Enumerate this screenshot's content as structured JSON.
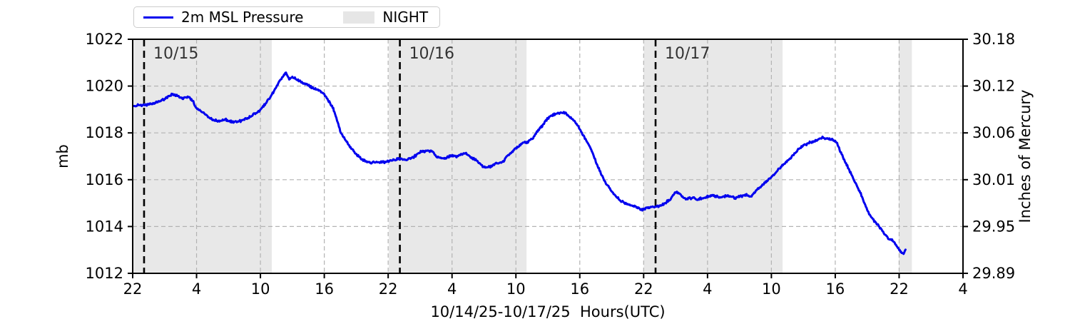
{
  "figure": {
    "xlabel": "10/14/25-10/17/25  Hours(UTC)",
    "ylabel_left": "mb",
    "ylabel_right": "Inches of Mercury"
  },
  "legend": {
    "pressure_label": "2m MSL Pressure",
    "night_label": "NIGHT"
  },
  "colors": {
    "line": "#0000ee",
    "night_fill": "#e8e8e8",
    "grid": "#b3b3b3",
    "spine": "#000000",
    "date_label": "#333333",
    "midnight_line": "#000000"
  },
  "chart_data": {
    "type": "line",
    "title": "",
    "xlabel": "10/14/25-10/17/25  Hours(UTC)",
    "ylabel_left": "mb",
    "ylabel_right": "Inches of Mercury",
    "x_axis_note": "hours UTC, t=0 corresponds to 22:00 UTC 10/14/25",
    "xlim_hours": [
      0,
      78
    ],
    "ylim_mb": [
      1012,
      1022
    ],
    "grid": true,
    "legend_position": "top-left above axes",
    "x_tick_hours": [
      0,
      6,
      12,
      18,
      24,
      30,
      36,
      42,
      48,
      54,
      60,
      66,
      72,
      78
    ],
    "x_tick_labels": [
      "22",
      "4",
      "10",
      "16",
      "22",
      "4",
      "10",
      "16",
      "22",
      "4",
      "10",
      "16",
      "22",
      "4"
    ],
    "y_left_ticks_mb": [
      1012,
      1014,
      1016,
      1018,
      1020,
      1022
    ],
    "y_right_tick_labels": [
      "29.89",
      "29.95",
      "30.01",
      "30.06",
      "30.12",
      "30.18"
    ],
    "night_bands_hours": [
      [
        0,
        13.07
      ],
      [
        24.06,
        37.0
      ],
      [
        48.0,
        61.05
      ],
      [
        71.96,
        73.2
      ]
    ],
    "midnight_lines": [
      {
        "hour": 1.07,
        "label": "10/15"
      },
      {
        "hour": 25.1,
        "label": "10/16"
      },
      {
        "hour": 49.12,
        "label": "10/17"
      }
    ],
    "series": [
      {
        "name": "2m MSL Pressure",
        "color": "#0000ee",
        "units": "mb",
        "points": [
          [
            0,
            1019.15
          ],
          [
            0.7,
            1019.18
          ],
          [
            1.3,
            1019.2
          ],
          [
            2.2,
            1019.3
          ],
          [
            3,
            1019.45
          ],
          [
            3.7,
            1019.65
          ],
          [
            4.2,
            1019.6
          ],
          [
            4.7,
            1019.45
          ],
          [
            5.2,
            1019.55
          ],
          [
            5.6,
            1019.4
          ],
          [
            6,
            1019.05
          ],
          [
            6.7,
            1018.85
          ],
          [
            7.4,
            1018.6
          ],
          [
            8,
            1018.5
          ],
          [
            8.7,
            1018.58
          ],
          [
            9.4,
            1018.45
          ],
          [
            10,
            1018.5
          ],
          [
            10.7,
            1018.6
          ],
          [
            11.2,
            1018.75
          ],
          [
            11.9,
            1018.95
          ],
          [
            12.5,
            1019.25
          ],
          [
            13.1,
            1019.65
          ],
          [
            13.6,
            1020.05
          ],
          [
            14.1,
            1020.4
          ],
          [
            14.4,
            1020.55
          ],
          [
            14.7,
            1020.3
          ],
          [
            15.1,
            1020.38
          ],
          [
            15.5,
            1020.25
          ],
          [
            16.1,
            1020.12
          ],
          [
            16.6,
            1020.0
          ],
          [
            17,
            1019.9
          ],
          [
            17.4,
            1019.85
          ],
          [
            17.9,
            1019.7
          ],
          [
            18.3,
            1019.45
          ],
          [
            18.8,
            1019.1
          ],
          [
            19.2,
            1018.55
          ],
          [
            19.6,
            1017.95
          ],
          [
            19.9,
            1017.75
          ],
          [
            20.4,
            1017.43
          ],
          [
            21,
            1017.08
          ],
          [
            21.7,
            1016.82
          ],
          [
            22.4,
            1016.72
          ],
          [
            23,
            1016.76
          ],
          [
            23.7,
            1016.76
          ],
          [
            24.4,
            1016.82
          ],
          [
            25.1,
            1016.9
          ],
          [
            25.7,
            1016.82
          ],
          [
            26.4,
            1016.97
          ],
          [
            27.1,
            1017.2
          ],
          [
            27.7,
            1017.24
          ],
          [
            28.2,
            1017.18
          ],
          [
            28.6,
            1016.97
          ],
          [
            29.1,
            1016.92
          ],
          [
            29.6,
            1016.97
          ],
          [
            30,
            1017.02
          ],
          [
            30.4,
            1016.97
          ],
          [
            30.9,
            1017.07
          ],
          [
            31.3,
            1017.12
          ],
          [
            31.8,
            1016.92
          ],
          [
            32.2,
            1016.87
          ],
          [
            32.6,
            1016.67
          ],
          [
            33.1,
            1016.52
          ],
          [
            33.6,
            1016.55
          ],
          [
            34,
            1016.67
          ],
          [
            34.4,
            1016.7
          ],
          [
            34.9,
            1016.82
          ],
          [
            35.3,
            1017.07
          ],
          [
            35.8,
            1017.27
          ],
          [
            36.2,
            1017.42
          ],
          [
            36.7,
            1017.58
          ],
          [
            37.1,
            1017.62
          ],
          [
            37.6,
            1017.78
          ],
          [
            38,
            1018.07
          ],
          [
            38.5,
            1018.32
          ],
          [
            38.9,
            1018.57
          ],
          [
            39.3,
            1018.72
          ],
          [
            39.8,
            1018.82
          ],
          [
            40.3,
            1018.87
          ],
          [
            40.7,
            1018.82
          ],
          [
            41.1,
            1018.67
          ],
          [
            41.6,
            1018.45
          ],
          [
            42,
            1018.15
          ],
          [
            42.4,
            1017.85
          ],
          [
            42.9,
            1017.45
          ],
          [
            43.4,
            1016.9
          ],
          [
            44,
            1016.25
          ],
          [
            44.4,
            1015.88
          ],
          [
            45.2,
            1015.4
          ],
          [
            45.8,
            1015.1
          ],
          [
            46.5,
            1014.96
          ],
          [
            47.2,
            1014.86
          ],
          [
            47.8,
            1014.72
          ],
          [
            48.5,
            1014.8
          ],
          [
            49.2,
            1014.86
          ],
          [
            49.9,
            1014.96
          ],
          [
            50.5,
            1015.17
          ],
          [
            51,
            1015.47
          ],
          [
            51.4,
            1015.4
          ],
          [
            51.9,
            1015.17
          ],
          [
            52.5,
            1015.22
          ],
          [
            53.2,
            1015.17
          ],
          [
            53.9,
            1015.27
          ],
          [
            54.5,
            1015.32
          ],
          [
            55.2,
            1015.24
          ],
          [
            55.9,
            1015.32
          ],
          [
            56.6,
            1015.22
          ],
          [
            57.2,
            1015.3
          ],
          [
            57.6,
            1015.34
          ],
          [
            58.1,
            1015.29
          ],
          [
            58.6,
            1015.55
          ],
          [
            59.2,
            1015.8
          ],
          [
            59.9,
            1016.06
          ],
          [
            60.8,
            1016.5
          ],
          [
            61.5,
            1016.8
          ],
          [
            61.9,
            1016.97
          ],
          [
            62.6,
            1017.32
          ],
          [
            63.3,
            1017.52
          ],
          [
            63.9,
            1017.63
          ],
          [
            64.4,
            1017.72
          ],
          [
            64.8,
            1017.8
          ],
          [
            65.5,
            1017.73
          ],
          [
            65.9,
            1017.7
          ],
          [
            66.2,
            1017.52
          ],
          [
            66.5,
            1017.17
          ],
          [
            67,
            1016.7
          ],
          [
            67.5,
            1016.25
          ],
          [
            67.9,
            1015.85
          ],
          [
            68.4,
            1015.4
          ],
          [
            68.8,
            1014.93
          ],
          [
            69.2,
            1014.52
          ],
          [
            69.7,
            1014.22
          ],
          [
            70.2,
            1013.96
          ],
          [
            70.6,
            1013.7
          ],
          [
            71,
            1013.5
          ],
          [
            71.5,
            1013.35
          ],
          [
            71.9,
            1013.1
          ],
          [
            72.2,
            1012.88
          ],
          [
            72.4,
            1012.85
          ],
          [
            72.6,
            1013.0
          ]
        ]
      }
    ]
  }
}
